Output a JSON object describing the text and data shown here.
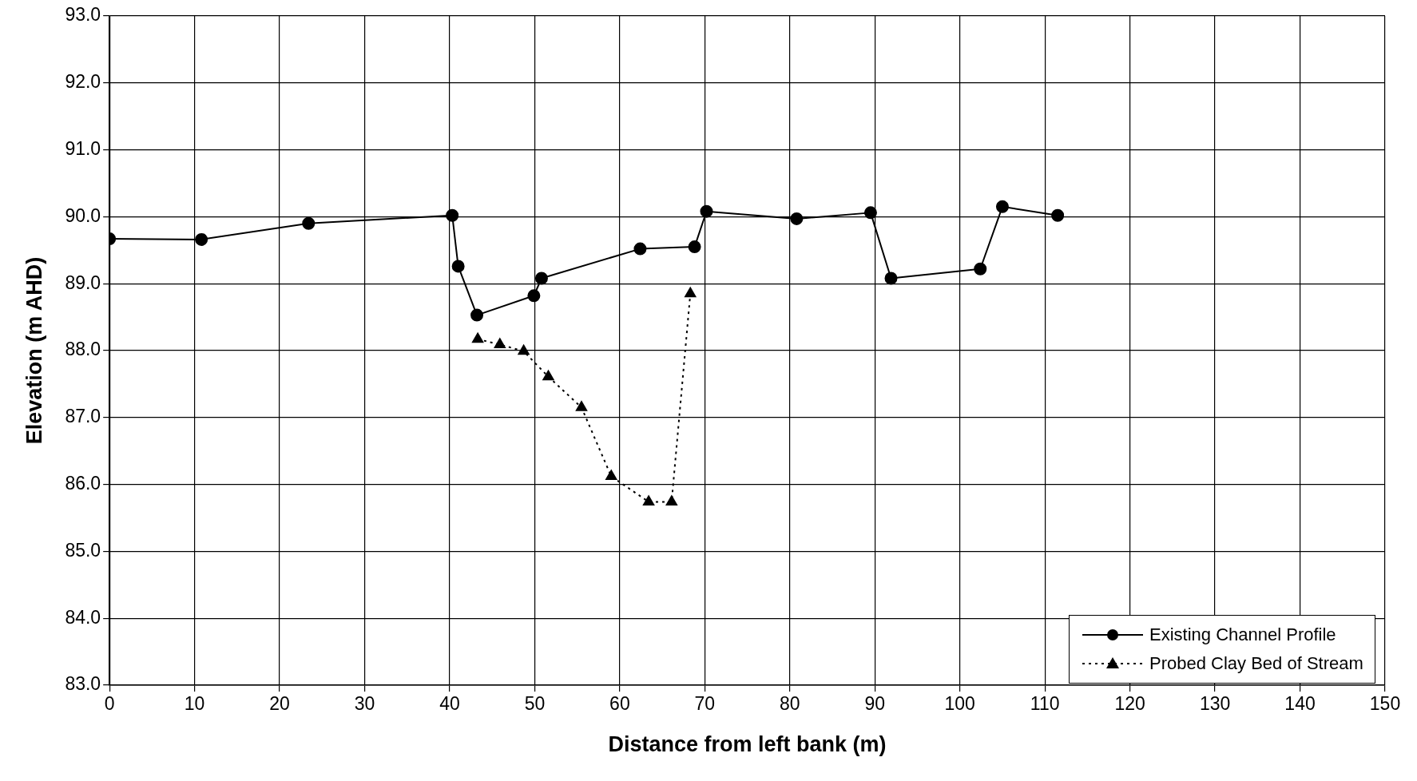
{
  "chart_data": {
    "type": "line",
    "xlabel": "Distance from left bank (m)",
    "ylabel": "Elevation (m AHD)",
    "xlim": [
      0,
      150
    ],
    "xticks": [
      0,
      10,
      20,
      30,
      40,
      50,
      60,
      70,
      80,
      90,
      100,
      110,
      120,
      130,
      140,
      150
    ],
    "ylim": [
      83,
      93
    ],
    "yticks": [
      {
        "value": 83,
        "label": "83.0"
      },
      {
        "value": 84,
        "label": "84.0"
      },
      {
        "value": 85,
        "label": "85.0"
      },
      {
        "value": 86,
        "label": "86.0"
      },
      {
        "value": 87,
        "label": "87.0"
      },
      {
        "value": 88,
        "label": "88.0"
      },
      {
        "value": 89,
        "label": "89.0"
      },
      {
        "value": 90,
        "label": "90.0"
      },
      {
        "value": 91,
        "label": "91.0"
      },
      {
        "value": 92,
        "label": "92.0"
      },
      {
        "value": 93,
        "label": "93.0"
      }
    ],
    "grid": true,
    "legend": "bottom right",
    "series": [
      {
        "name": "Existing Channel Profile",
        "color": "#000000",
        "marker": "circle",
        "line_style": "solid",
        "x": [
          0,
          10.8,
          23.4,
          40.3,
          41.0,
          43.2,
          49.9,
          50.8,
          62.4,
          68.8,
          70.2,
          80.8,
          89.5,
          91.9,
          102.4,
          105.0,
          111.5
        ],
        "values": [
          89.67,
          89.66,
          89.9,
          90.02,
          89.26,
          88.53,
          88.82,
          89.08,
          89.52,
          89.55,
          90.08,
          89.97,
          90.06,
          89.08,
          89.22,
          90.15,
          90.02
        ]
      },
      {
        "name": "Probed Clay Bed of Stream",
        "color": "#000000",
        "marker": "triangle",
        "line_style": "dotted",
        "x": [
          43.3,
          45.9,
          48.7,
          51.6,
          55.5,
          59.0,
          63.4,
          66.1,
          68.3
        ],
        "values": [
          88.17,
          88.09,
          87.99,
          87.61,
          87.15,
          86.12,
          85.74,
          85.74,
          88.85
        ]
      }
    ]
  }
}
